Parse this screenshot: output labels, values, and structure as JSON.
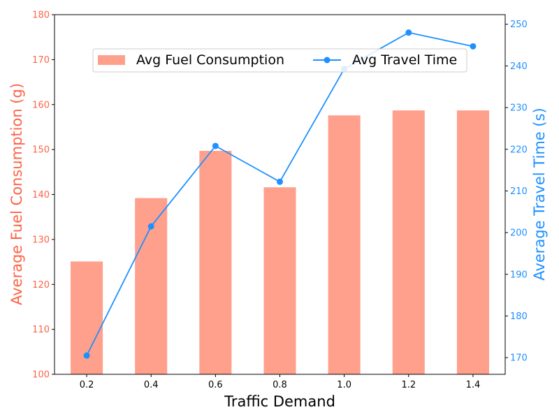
{
  "chart_data": {
    "type": "bar",
    "categories": [
      "0.2",
      "0.4",
      "0.6",
      "0.8",
      "1.0",
      "1.2",
      "1.4"
    ],
    "xlabel": "Traffic Demand",
    "y_left": {
      "label": "Average Fuel Consumption (g)",
      "ylim": [
        100,
        180
      ],
      "ticks": [
        100,
        110,
        120,
        130,
        140,
        150,
        160,
        170,
        180
      ],
      "color": "#FF6347"
    },
    "y_right": {
      "label": "Average Travel Time (s)",
      "ylim": [
        166,
        252.3
      ],
      "ticks": [
        170,
        180,
        190,
        200,
        210,
        220,
        230,
        240,
        250
      ],
      "color": "#1E90FF"
    },
    "series": [
      {
        "name": "Avg Fuel Consumption",
        "type": "bar",
        "axis": "left",
        "color": "#FFA08C",
        "values": [
          125.1,
          139.2,
          149.7,
          141.6,
          157.6,
          158.7,
          158.7
        ]
      },
      {
        "name": "Avg Travel Time",
        "type": "line",
        "axis": "right",
        "color": "#1E90FF",
        "values": [
          170.5,
          201.5,
          220.8,
          212.2,
          239.3,
          248.0,
          244.7
        ]
      }
    ],
    "legend_position": "top-center",
    "grid": false
  }
}
